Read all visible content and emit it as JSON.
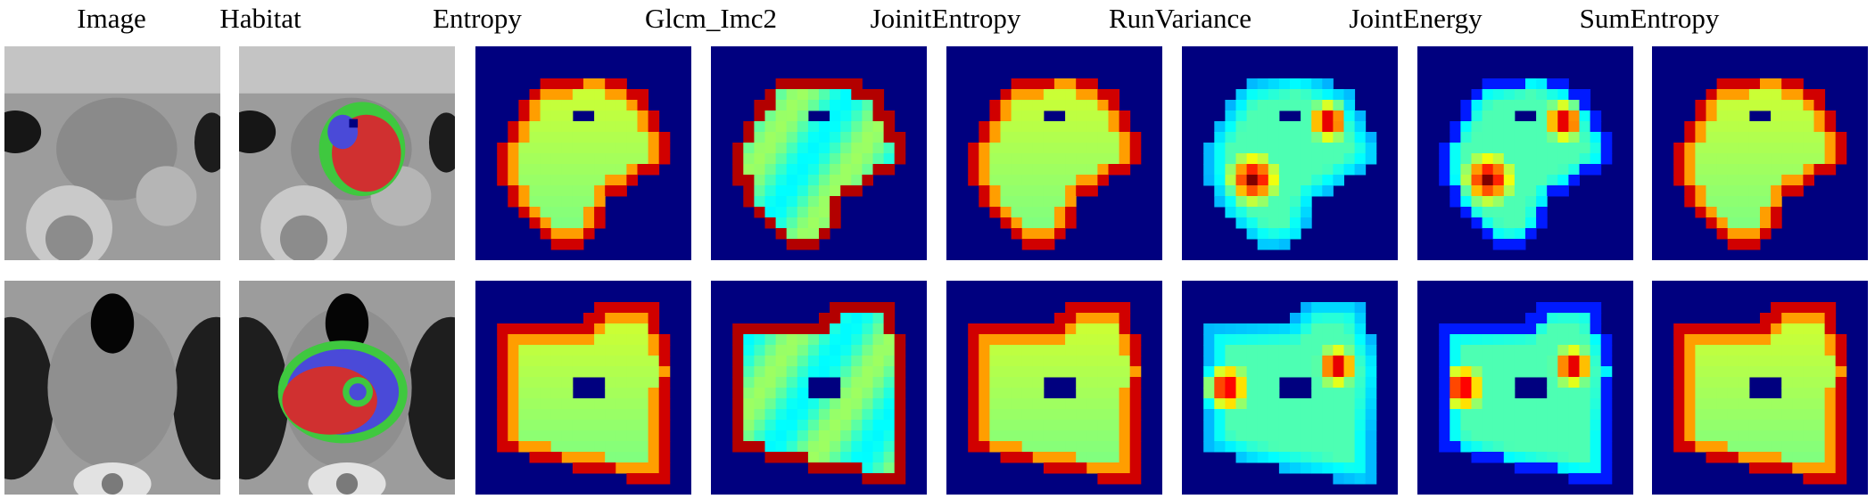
{
  "columns": [
    {
      "title": "Image",
      "kind": "ct"
    },
    {
      "title": "Habitat",
      "kind": "habitat"
    },
    {
      "title": "Entropy",
      "kind": "featuremap"
    },
    {
      "title": "Glcm_Imc2",
      "kind": "featuremap"
    },
    {
      "title": "JoinitEntropy",
      "kind": "featuremap"
    },
    {
      "title": "RunVariance",
      "kind": "featuremap"
    },
    {
      "title": "JointEnergy",
      "kind": "featuremap"
    },
    {
      "title": "SumEntropy",
      "kind": "featuremap"
    }
  ],
  "rows": 2,
  "colors": {
    "background": "#00007f",
    "habitat_red": "#d03030",
    "habitat_green": "#3fc83f",
    "habitat_blue": "#4a4ad8"
  }
}
